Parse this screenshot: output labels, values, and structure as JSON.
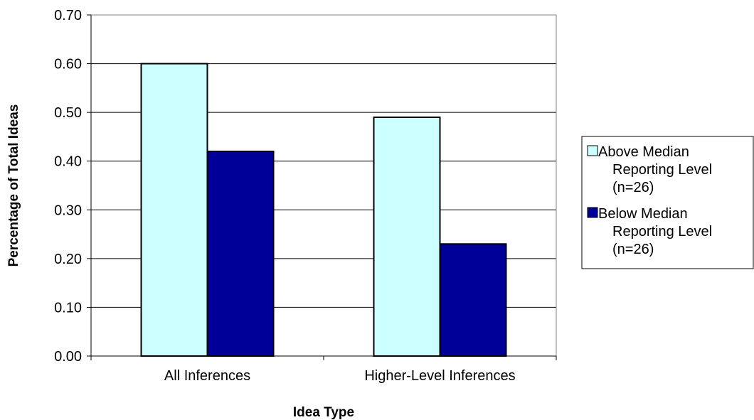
{
  "chart_data": {
    "type": "bar",
    "title": "",
    "xlabel": "Idea Type",
    "ylabel": "Percentage of Total Ideas",
    "categories": [
      "All Inferences",
      "Higher-Level Inferences"
    ],
    "series": [
      {
        "name": "Above Median Reporting Level (n=26)",
        "legend_lines": [
          "Above Median",
          "Reporting Level",
          "(n=26)"
        ],
        "color": "#ccffff",
        "values": [
          0.6,
          0.49
        ]
      },
      {
        "name": "Below Median Reporting Level (n=26)",
        "legend_lines": [
          "Below Median",
          "Reporting Level",
          "(n=26)"
        ],
        "color": "#000099",
        "values": [
          0.42,
          0.23
        ]
      }
    ],
    "ylim": [
      0,
      0.7
    ],
    "yticks": [
      "0.00",
      "0.10",
      "0.20",
      "0.30",
      "0.40",
      "0.50",
      "0.60",
      "0.70"
    ],
    "grid": true,
    "legend_position": "right"
  }
}
